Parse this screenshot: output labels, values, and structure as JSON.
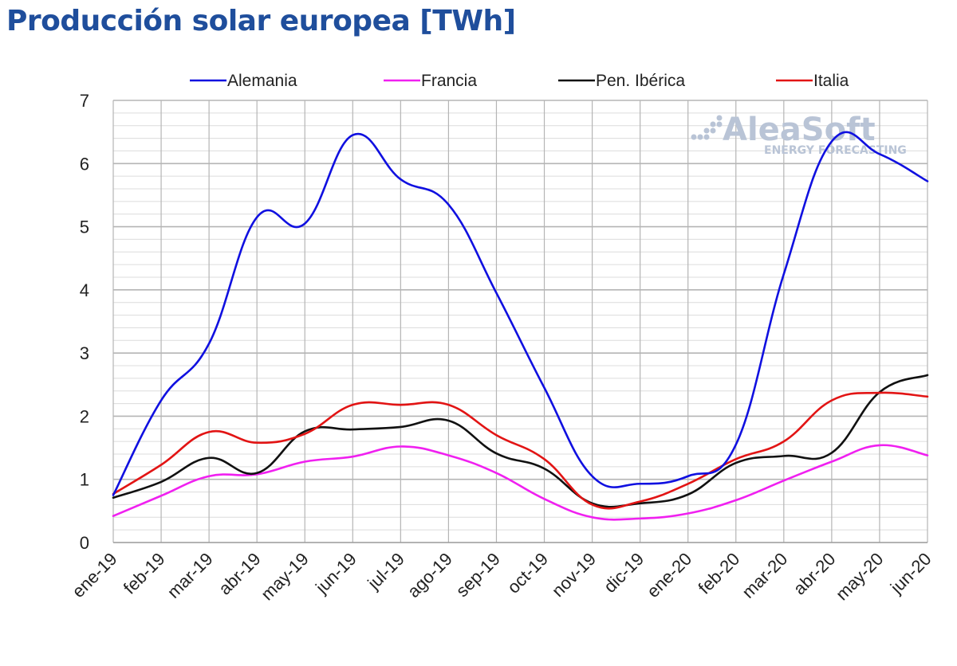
{
  "title": "Producción solar europea [TWh]",
  "watermark": {
    "brand": "AleaSoft",
    "tagline": "ENERGY FORECASTING"
  },
  "colors": {
    "title": "#1f4e9c",
    "grid_major": "#b5b5b5",
    "grid_minor": "#dcdcdc"
  },
  "chart_data": {
    "type": "line",
    "title": "Producción solar europea [TWh]",
    "xlabel": "",
    "ylabel": "",
    "categories": [
      "ene-19",
      "feb-19",
      "mar-19",
      "abr-19",
      "may-19",
      "jun-19",
      "jul-19",
      "ago-19",
      "sep-19",
      "oct-19",
      "nov-19",
      "dic-19",
      "ene-20",
      "feb-20",
      "mar-20",
      "abr-20",
      "may-20",
      "jun-20"
    ],
    "ylim": [
      0,
      7
    ],
    "yticks": [
      0,
      1,
      2,
      3,
      4,
      5,
      6,
      7
    ],
    "grid": true,
    "legend_position": "top",
    "series": [
      {
        "name": "Alemania",
        "color": "#1010e0",
        "values": [
          0.75,
          2.25,
          3.15,
          5.15,
          5.05,
          6.45,
          5.75,
          5.35,
          3.95,
          2.45,
          1.05,
          0.93,
          1.05,
          1.55,
          4.25,
          6.35,
          6.15,
          5.72
        ]
      },
      {
        "name": "Francia",
        "color": "#f020f0",
        "values": [
          0.42,
          0.74,
          1.05,
          1.08,
          1.28,
          1.36,
          1.52,
          1.38,
          1.1,
          0.69,
          0.4,
          0.38,
          0.46,
          0.67,
          0.98,
          1.28,
          1.54,
          1.38
        ]
      },
      {
        "name": "Pen. Ibérica",
        "color": "#111111",
        "values": [
          0.71,
          0.96,
          1.34,
          1.1,
          1.76,
          1.79,
          1.83,
          1.93,
          1.41,
          1.17,
          0.62,
          0.62,
          0.76,
          1.26,
          1.37,
          1.42,
          2.38,
          2.65
        ]
      },
      {
        "name": "Italia",
        "color": "#e21414",
        "values": [
          0.77,
          1.23,
          1.75,
          1.58,
          1.72,
          2.18,
          2.18,
          2.18,
          1.7,
          1.32,
          0.6,
          0.65,
          0.93,
          1.32,
          1.6,
          2.25,
          2.37,
          2.31
        ]
      }
    ]
  }
}
